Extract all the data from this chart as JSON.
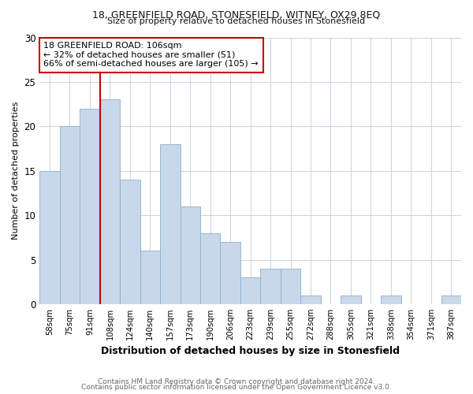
{
  "title1": "18, GREENFIELD ROAD, STONESFIELD, WITNEY, OX29 8EQ",
  "title2": "Size of property relative to detached houses in Stonesfield",
  "xlabel": "Distribution of detached houses by size in Stonesfield",
  "ylabel": "Number of detached properties",
  "footer1": "Contains HM Land Registry data © Crown copyright and database right 2024.",
  "footer2": "Contains public sector information licensed under the Open Government Licence v3.0.",
  "bin_labels": [
    "58sqm",
    "75sqm",
    "91sqm",
    "108sqm",
    "124sqm",
    "140sqm",
    "157sqm",
    "173sqm",
    "190sqm",
    "206sqm",
    "223sqm",
    "239sqm",
    "255sqm",
    "272sqm",
    "288sqm",
    "305sqm",
    "321sqm",
    "338sqm",
    "354sqm",
    "371sqm",
    "387sqm"
  ],
  "bar_values": [
    15,
    20,
    22,
    23,
    14,
    6,
    18,
    11,
    8,
    7,
    3,
    4,
    4,
    1,
    0,
    1,
    0,
    1,
    0,
    0,
    1
  ],
  "bar_color": "#c8d8ea",
  "bar_edge_color": "#8ab0cc",
  "vline_color": "#cc0000",
  "annotation_text": "18 GREENFIELD ROAD: 106sqm\n← 32% of detached houses are smaller (51)\n66% of semi-detached houses are larger (105) →",
  "annotation_box_color": "#ffffff",
  "annotation_box_edge": "#cc0000",
  "ylim": [
    0,
    30
  ],
  "yticks": [
    0,
    5,
    10,
    15,
    20,
    25,
    30
  ],
  "background_color": "#ffffff",
  "grid_color": "#c8d4dc"
}
